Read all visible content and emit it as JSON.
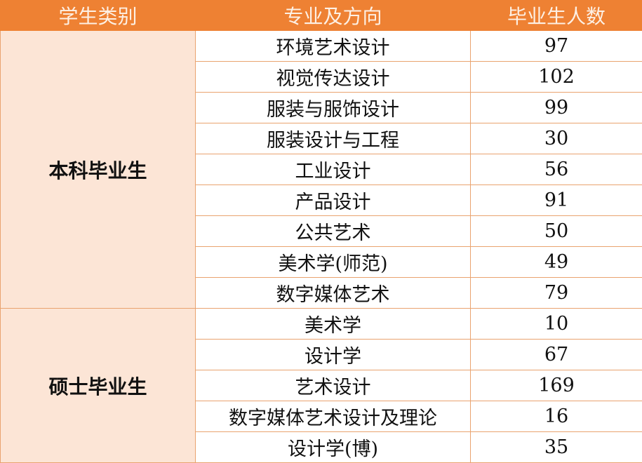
{
  "headers": [
    "学生类别",
    "专业及方向",
    "毕业生人数"
  ],
  "groups": [
    {
      "category": "本科毕业生",
      "rows": [
        {
          "major": "环境艺术设计",
          "count": "97"
        },
        {
          "major": "视觉传达设计",
          "count": "102"
        },
        {
          "major": "服装与服饰设计",
          "count": "99"
        },
        {
          "major": "服装设计与工程",
          "count": "30"
        },
        {
          "major": "工业设计",
          "count": "56"
        },
        {
          "major": "产品设计",
          "count": "91"
        },
        {
          "major": "公共艺术",
          "count": "50"
        },
        {
          "major": "美术学(师范)",
          "count": "49"
        },
        {
          "major": "数字媒体艺术",
          "count": "79"
        }
      ]
    },
    {
      "category": "硕士毕业生",
      "rows": [
        {
          "major": "美术学",
          "count": "10"
        },
        {
          "major": "设计学",
          "count": "67"
        },
        {
          "major": "艺术设计",
          "count": "169"
        },
        {
          "major": "数字媒体艺术设计及理论",
          "count": "16"
        },
        {
          "major": "设计学(博)",
          "count": "35"
        }
      ]
    }
  ],
  "colors": {
    "header_bg": "#EE8133",
    "category_bg": "#FCE5D6",
    "border": "#E9A36F"
  }
}
